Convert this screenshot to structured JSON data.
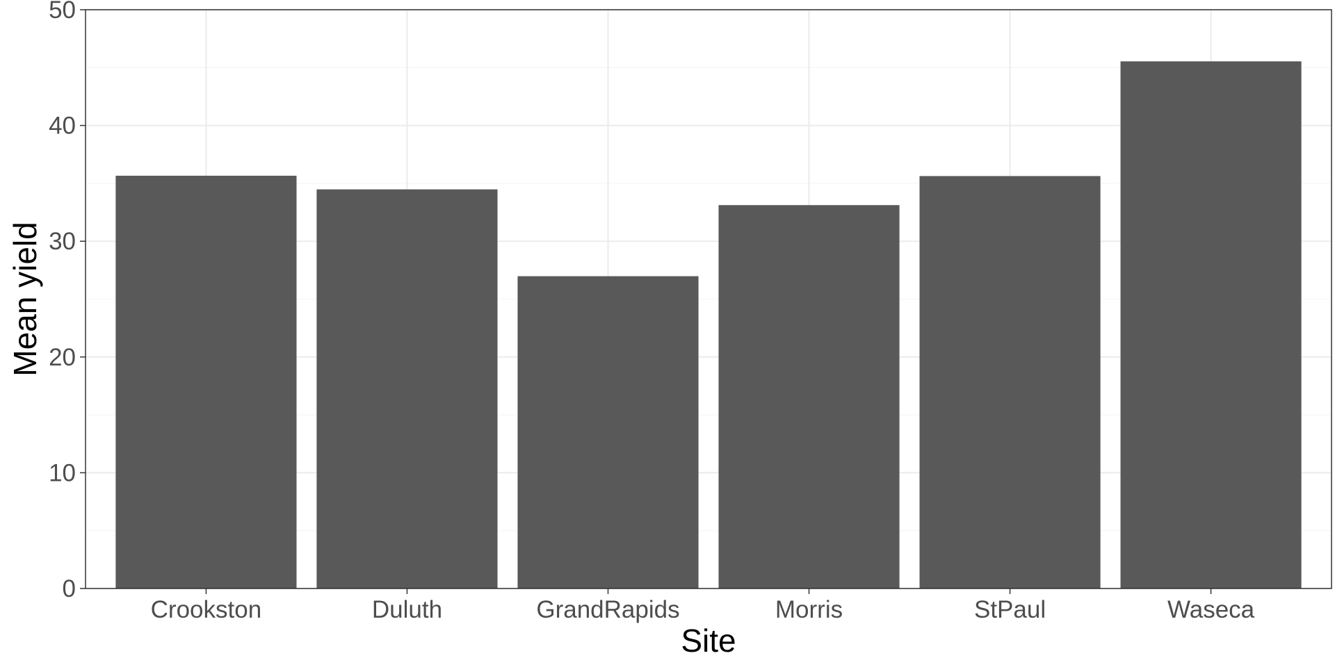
{
  "chart_data": {
    "type": "bar",
    "title": "",
    "xlabel": "Site",
    "ylabel": "Mean yield",
    "categories": [
      "Crookston",
      "Duluth",
      "GrandRapids",
      "Morris",
      "StPaul",
      "Waseca"
    ],
    "values": [
      35.66,
      34.48,
      26.98,
      33.12,
      35.63,
      45.54
    ],
    "ylim": [
      0,
      50
    ],
    "yticks": [
      0,
      10,
      20,
      30,
      40,
      50
    ],
    "ytick_labels": [
      "0",
      "10",
      "20",
      "30",
      "40",
      "50"
    ],
    "grid": true,
    "legend": "none"
  },
  "colors": {
    "bar": "#595959",
    "grid_major": "#ebebeb",
    "grid_minor": "#f5f5f5",
    "panel_border": "#333333",
    "tick_text": "#4d4d4d",
    "axis_title": "#000000",
    "background": "#ffffff"
  }
}
